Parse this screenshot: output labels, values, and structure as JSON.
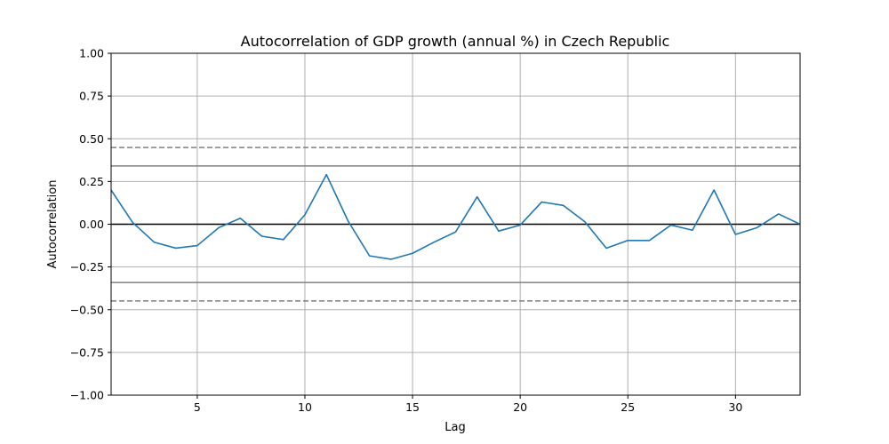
{
  "chart_data": {
    "type": "line",
    "title": "Autocorrelation of GDP growth (annual %) in Czech Republic",
    "xlabel": "Lag",
    "ylabel": "Autocorrelation",
    "xlim": [
      1,
      33
    ],
    "ylim": [
      -1.0,
      1.0
    ],
    "grid": true,
    "x_ticks": [
      5,
      10,
      15,
      20,
      25,
      30
    ],
    "y_ticks": [
      -1.0,
      -0.75,
      -0.5,
      -0.25,
      0.0,
      0.25,
      0.5,
      0.75,
      1.0
    ],
    "y_tick_labels": [
      "−1.00",
      "−0.75",
      "−0.50",
      "−0.25",
      "0.00",
      "0.25",
      "0.50",
      "0.75",
      "1.00"
    ],
    "series": [
      {
        "x": [
          1,
          2,
          3,
          4,
          5,
          6,
          7,
          8,
          9,
          10,
          11,
          12,
          13,
          14,
          15,
          16,
          17,
          18,
          19,
          20,
          21,
          22,
          23,
          24,
          25,
          26,
          27,
          28,
          29,
          30,
          31,
          32,
          33
        ],
        "values": [
          0.2,
          0.01,
          -0.105,
          -0.14,
          -0.125,
          -0.02,
          0.035,
          -0.07,
          -0.09,
          0.055,
          0.29,
          0.02,
          -0.185,
          -0.205,
          -0.17,
          -0.105,
          -0.045,
          0.16,
          -0.04,
          -0.005,
          0.13,
          0.11,
          0.015,
          -0.14,
          -0.095,
          -0.095,
          -0.005,
          -0.035,
          0.2,
          -0.06,
          -0.02,
          0.06,
          0.0
        ],
        "color": "#1f77b4"
      }
    ],
    "reference_lines": [
      {
        "y": 0.0,
        "color": "#000000",
        "style": "solid"
      },
      {
        "y": 0.341,
        "color": "#808080",
        "style": "solid"
      },
      {
        "y": -0.341,
        "color": "#808080",
        "style": "solid"
      },
      {
        "y": 0.449,
        "color": "#808080",
        "style": "dashed"
      },
      {
        "y": -0.449,
        "color": "#808080",
        "style": "dashed"
      }
    ]
  }
}
